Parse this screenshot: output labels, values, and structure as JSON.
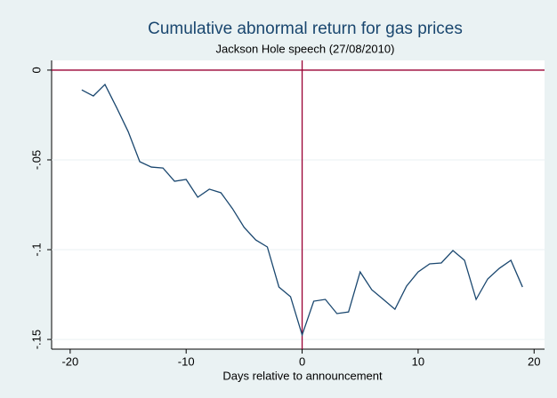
{
  "chart_data": {
    "type": "line",
    "title": "Cumulative abnormal return for gas prices",
    "subtitle": "Jackson Hole speech (27/08/2010)",
    "x_label": "Days relative to announcement",
    "x": [
      -19,
      -18,
      -17,
      -16,
      -15,
      -14,
      -13,
      -12,
      -11,
      -10,
      -9,
      -8,
      -7,
      -6,
      -5,
      -4,
      -3,
      -2,
      -1,
      0,
      1,
      2,
      3,
      4,
      5,
      6,
      7,
      8,
      9,
      10,
      11,
      12,
      13,
      14,
      15,
      16,
      17,
      18,
      19
    ],
    "series": [
      {
        "color": "#1a476f",
        "values": [
          -0.011,
          -0.0144,
          -0.008,
          -0.0208,
          -0.0342,
          -0.051,
          -0.054,
          -0.0545,
          -0.0619,
          -0.0609,
          -0.0708,
          -0.0663,
          -0.0683,
          -0.0772,
          -0.0876,
          -0.0946,
          -0.0985,
          -0.1208,
          -0.1262,
          -0.1475,
          -0.1287,
          -0.1277,
          -0.1356,
          -0.1347,
          -0.1124,
          -0.1223,
          -0.1277,
          -0.1332,
          -0.1203,
          -0.1124,
          -0.1079,
          -0.1074,
          -0.1005,
          -0.1059,
          -0.1277,
          -0.1163,
          -0.1104,
          -0.1059,
          -0.1208
        ]
      }
    ],
    "xlim": [
      -21.6,
      20.9
    ],
    "ylim": [
      -0.1554,
      0.0054
    ],
    "xticks": [
      -20,
      -10,
      0,
      10,
      20
    ],
    "yticks": [
      0,
      {
        "value": -0.05,
        "label": "-.05"
      },
      {
        "value": -0.1,
        "label": "-.1"
      },
      {
        "value": -0.15,
        "label": "-.15"
      }
    ],
    "grid": true,
    "reference_lines": {
      "x": 0,
      "y": 0,
      "color": "#990033"
    }
  }
}
